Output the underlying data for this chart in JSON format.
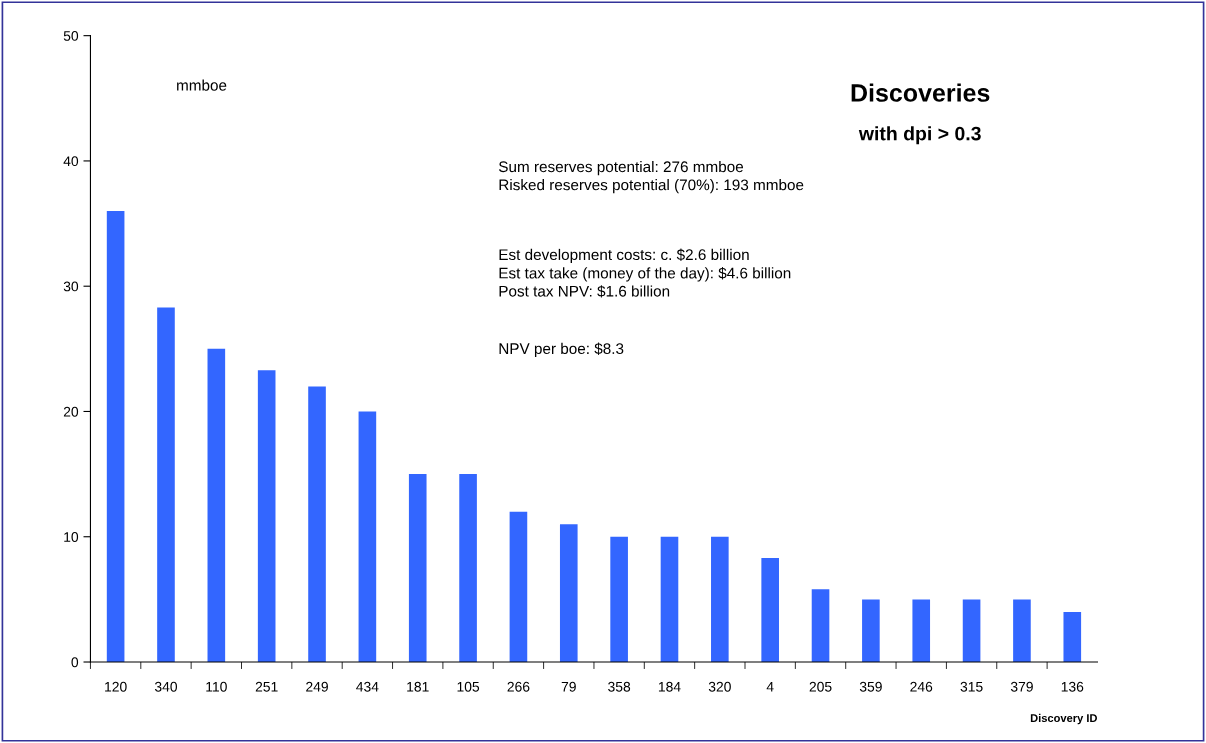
{
  "chart_data": {
    "type": "bar",
    "title": "Discoveries",
    "subtitle": "with dpi > 0.3",
    "xlabel": "Discovery ID",
    "categories": [
      "120",
      "340",
      "110",
      "251",
      "249",
      "434",
      "181",
      "105",
      "266",
      "79",
      "358",
      "184",
      "320",
      "4",
      "205",
      "359",
      "246",
      "315",
      "379",
      "136"
    ],
    "values": [
      36,
      28.3,
      25,
      23.3,
      22,
      20,
      15,
      15,
      12,
      11,
      10,
      10,
      10,
      8.3,
      5.8,
      5,
      5,
      5,
      5,
      4
    ],
    "color": "#3366ff",
    "ylim": [
      0,
      50
    ],
    "yticks": [
      0,
      10,
      20,
      30,
      40,
      50
    ],
    "grid": false,
    "legend": false,
    "annotations": [
      "mmboe",
      "Sum reserves potential: 276 mmboe\nRisked reserves potential (70%): 193 mmboe",
      "Est development costs: c. $2.6 billion\nEst tax take (money of the day): $4.6 billion\nPost tax NPV: $1.6 billion",
      "NPV per boe: $8.3"
    ]
  }
}
